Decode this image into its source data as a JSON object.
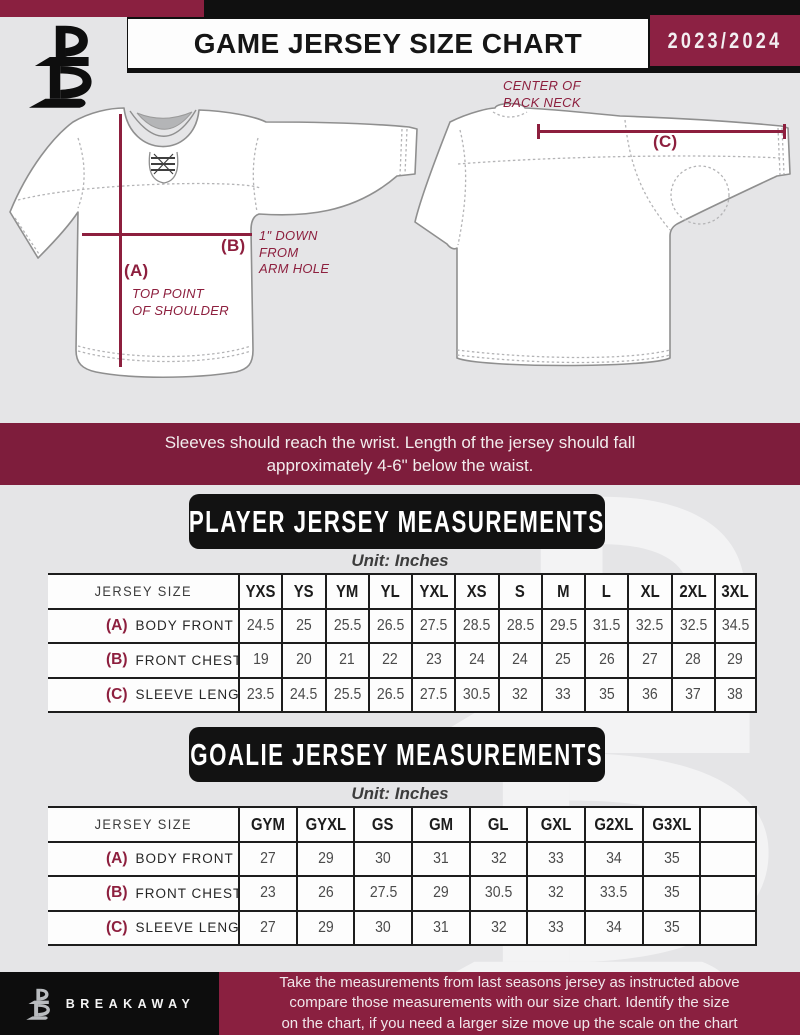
{
  "header": {
    "title": "GAME JERSEY SIZE CHART",
    "season": "2023/2024"
  },
  "diagram": {
    "front": {
      "key_a": "(A)",
      "note_a": "TOP POINT\nOF SHOULDER",
      "key_b": "(B)",
      "note_b": "1\" DOWN\nFROM\nARM HOLE"
    },
    "back": {
      "key_c": "(C)",
      "note_c": "CENTER OF\nBACK NECK"
    }
  },
  "banner": {
    "text": "Sleeves should reach the wrist. Length of the jersey should fall\napproximately 4-6\" below the waist."
  },
  "sections": {
    "player": {
      "title": "PLAYER JERSEY MEASUREMENTS",
      "unit": "Unit: Inches"
    },
    "goalie": {
      "title": "GOALIE JERSEY MEASUREMENTS",
      "unit": "Unit: Inches"
    }
  },
  "player_table": {
    "row_header": "JERSEY SIZE",
    "columns": [
      "YXS",
      "YS",
      "YM",
      "YL",
      "YXL",
      "XS",
      "S",
      "M",
      "L",
      "XL",
      "2XL",
      "3XL"
    ],
    "rows": [
      {
        "key": "(A)",
        "label": "BODY FRONT",
        "values": [
          "24.5",
          "25",
          "25.5",
          "26.5",
          "27.5",
          "28.5",
          "28.5",
          "29.5",
          "31.5",
          "32.5",
          "32.5",
          "34.5"
        ]
      },
      {
        "key": "(B)",
        "label": "FRONT CHEST",
        "values": [
          "19",
          "20",
          "21",
          "22",
          "23",
          "24",
          "24",
          "25",
          "26",
          "27",
          "28",
          "29"
        ]
      },
      {
        "key": "(C)",
        "label": "SLEEVE LENGTH",
        "values": [
          "23.5",
          "24.5",
          "25.5",
          "26.5",
          "27.5",
          "30.5",
          "32",
          "33",
          "35",
          "36",
          "37",
          "38"
        ]
      }
    ]
  },
  "goalie_table": {
    "row_header": "JERSEY SIZE",
    "columns": [
      "GYM",
      "GYXL",
      "GS",
      "GM",
      "GL",
      "GXL",
      "G2XL",
      "G3XL",
      ""
    ],
    "rows": [
      {
        "key": "(A)",
        "label": "BODY FRONT",
        "values": [
          "27",
          "29",
          "30",
          "31",
          "32",
          "33",
          "34",
          "35",
          ""
        ]
      },
      {
        "key": "(B)",
        "label": "FRONT CHEST",
        "values": [
          "23",
          "26",
          "27.5",
          "29",
          "30.5",
          "32",
          "33.5",
          "35",
          ""
        ]
      },
      {
        "key": "(C)",
        "label": "SLEEVE LENGTH",
        "values": [
          "27",
          "29",
          "30",
          "31",
          "32",
          "33",
          "34",
          "35",
          ""
        ]
      }
    ]
  },
  "footer": {
    "brand": "BREAKAWAY",
    "note": "Take the measurements from last seasons jersey as instructed above\ncompare those measurements  with our size chart. Identify the size\non the chart, if you need a larger size move up the scale on the chart"
  },
  "colors": {
    "maroon": "#8A2040",
    "banner_maroon": "#7E1D3C",
    "black": "#101010",
    "page_bg": "#E5E5E7"
  }
}
